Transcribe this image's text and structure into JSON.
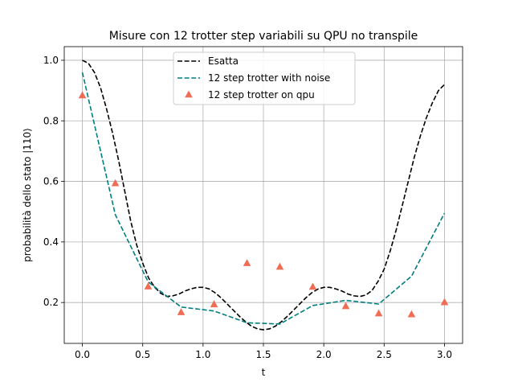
{
  "chart_data": {
    "type": "line",
    "title": "Misure con 12 trotter step variabili su QPU no transpile",
    "xlabel": "t",
    "ylabel": "probabilità dello stato |110⟩",
    "xlim": [
      -0.15,
      3.15
    ],
    "ylim": [
      0.065,
      1.045
    ],
    "x_ticks": [
      0.0,
      0.5,
      1.0,
      1.5,
      2.0,
      2.5,
      3.0
    ],
    "x_tick_labels": [
      "0.0",
      "0.5",
      "1.0",
      "1.5",
      "2.0",
      "2.5",
      "3.0"
    ],
    "y_ticks": [
      0.2,
      0.4,
      0.6,
      0.8,
      1.0
    ],
    "y_tick_labels": [
      "0.2",
      "0.4",
      "0.6",
      "0.8",
      "1.0"
    ],
    "grid": true,
    "legend_position": "top-center",
    "series": [
      {
        "name": "Esatta",
        "style": "dashed",
        "color": "#000000",
        "x": [
          0.0,
          0.05,
          0.1,
          0.15,
          0.2,
          0.25,
          0.3,
          0.35,
          0.4,
          0.45,
          0.5,
          0.55,
          0.6,
          0.65,
          0.7,
          0.75,
          0.8,
          0.85,
          0.9,
          0.95,
          1.0,
          1.05,
          1.1,
          1.15,
          1.2,
          1.25,
          1.3,
          1.35,
          1.4,
          1.45,
          1.5,
          1.55,
          1.6,
          1.65,
          1.7,
          1.75,
          1.8,
          1.85,
          1.9,
          1.95,
          2.0,
          2.05,
          2.1,
          2.15,
          2.2,
          2.25,
          2.3,
          2.35,
          2.4,
          2.45,
          2.5,
          2.55,
          2.6,
          2.65,
          2.7,
          2.75,
          2.8,
          2.85,
          2.9,
          2.95,
          3.0
        ],
        "y": [
          1.0,
          0.99,
          0.96,
          0.91,
          0.84,
          0.76,
          0.67,
          0.57,
          0.47,
          0.39,
          0.33,
          0.28,
          0.25,
          0.23,
          0.22,
          0.222,
          0.228,
          0.238,
          0.245,
          0.25,
          0.25,
          0.245,
          0.232,
          0.215,
          0.195,
          0.175,
          0.155,
          0.137,
          0.122,
          0.113,
          0.11,
          0.113,
          0.122,
          0.137,
          0.155,
          0.175,
          0.195,
          0.215,
          0.232,
          0.244,
          0.25,
          0.25,
          0.245,
          0.238,
          0.228,
          0.222,
          0.22,
          0.225,
          0.24,
          0.27,
          0.31,
          0.37,
          0.44,
          0.52,
          0.6,
          0.68,
          0.75,
          0.81,
          0.86,
          0.9,
          0.92
        ]
      },
      {
        "name": "12 step trotter with noise",
        "style": "dashed",
        "color": "#007f7f",
        "x": [
          0.0,
          0.273,
          0.545,
          0.818,
          1.091,
          1.364,
          1.636,
          1.909,
          2.182,
          2.455,
          2.727,
          3.0
        ],
        "y": [
          0.96,
          0.49,
          0.268,
          0.185,
          0.172,
          0.133,
          0.129,
          0.19,
          0.207,
          0.195,
          0.287,
          0.495
        ]
      },
      {
        "name": "12 step trotter on qpu",
        "style": "markers",
        "marker": "triangle",
        "color": "#ef6c55",
        "x": [
          0.0,
          0.273,
          0.545,
          0.818,
          1.091,
          1.364,
          1.636,
          1.909,
          2.182,
          2.455,
          2.727,
          3.0
        ],
        "y": [
          0.883,
          0.593,
          0.252,
          0.167,
          0.193,
          0.329,
          0.317,
          0.251,
          0.187,
          0.163,
          0.16,
          0.2
        ]
      }
    ]
  }
}
